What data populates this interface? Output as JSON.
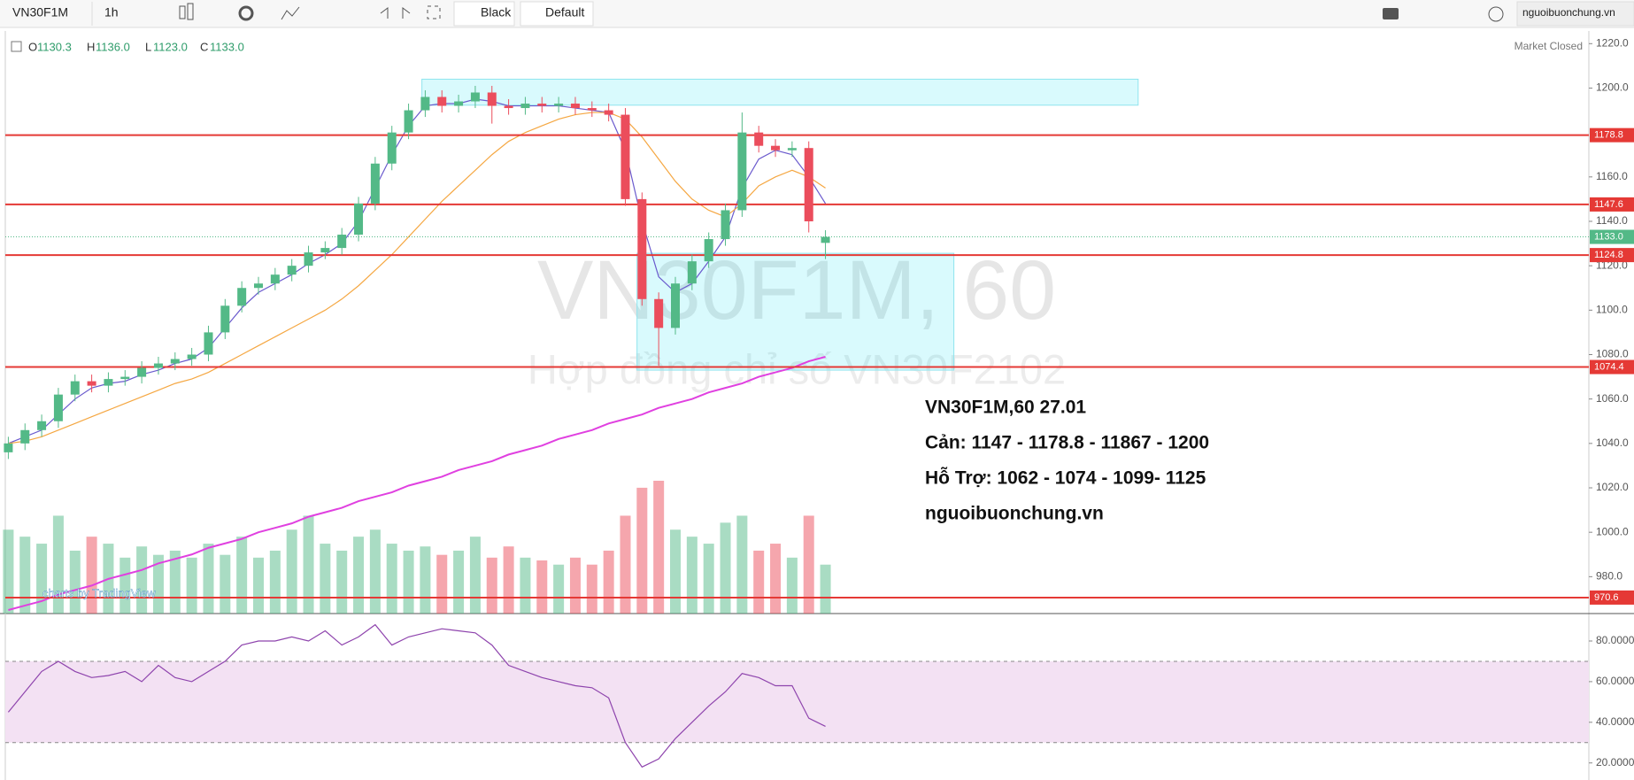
{
  "toolbar": {
    "symbol": "VN30F1M",
    "interval": "1h",
    "theme": "Black",
    "layout": "Default",
    "site": "nguoibuonchung.vn"
  },
  "legend": {
    "o_label": "O",
    "o": "1130.3",
    "h_label": "H",
    "h": "1136.0",
    "l_label": "L",
    "l": "1123.0",
    "c_label": "C",
    "c": "1133.0"
  },
  "status": "Market Closed",
  "watermark": {
    "title": "VN30F1M, 60",
    "subtitle": "Hợp đồng chỉ số VN30F2102"
  },
  "credit": "charts by TradingView",
  "annotation": [
    "VN30F1M,60  27.01",
    "Cản: 1147 - 1178.8 - 11867 - 1200",
    "Hỗ Trợ: 1062 - 1074 - 1099- 1125",
    "nguoibuonchung.vn"
  ],
  "chart_data": {
    "type": "candlestick",
    "ylim": [
      963.4,
      1225.7
    ],
    "yticks": [
      {
        "value": 1220,
        "label": "1220.0"
      },
      {
        "value": 1200,
        "label": "1200.0"
      },
      {
        "value": 1160,
        "label": "1160.0"
      },
      {
        "value": 1140,
        "label": "1140.0"
      },
      {
        "value": 1120,
        "label": "1120.0"
      },
      {
        "value": 1100,
        "label": "1100.0"
      },
      {
        "value": 1080,
        "label": "1080.0"
      },
      {
        "value": 1060,
        "label": "1060.0"
      },
      {
        "value": 1040,
        "label": "1040.0"
      },
      {
        "value": 1020,
        "label": "1020.0"
      },
      {
        "value": 1000,
        "label": "1000.0"
      },
      {
        "value": 980,
        "label": "980.0"
      }
    ],
    "up_color": "#53b987",
    "down_color": "#eb4d5c",
    "candles": [
      [
        1036,
        1043,
        1033,
        1040
      ],
      [
        1040,
        1049,
        1037,
        1046
      ],
      [
        1046,
        1053,
        1043,
        1050
      ],
      [
        1050,
        1065,
        1047,
        1062
      ],
      [
        1062,
        1071,
        1059,
        1068
      ],
      [
        1068,
        1071,
        1063,
        1066
      ],
      [
        1066,
        1072,
        1063,
        1069
      ],
      [
        1069,
        1073,
        1066,
        1070
      ],
      [
        1070,
        1077,
        1067,
        1074
      ],
      [
        1074,
        1079,
        1071,
        1076
      ],
      [
        1076,
        1081,
        1073,
        1078
      ],
      [
        1078,
        1083,
        1075,
        1080
      ],
      [
        1080,
        1093,
        1077,
        1090
      ],
      [
        1090,
        1105,
        1087,
        1102
      ],
      [
        1102,
        1113,
        1099,
        1110
      ],
      [
        1110,
        1115,
        1107,
        1112
      ],
      [
        1112,
        1119,
        1109,
        1116
      ],
      [
        1116,
        1123,
        1113,
        1120
      ],
      [
        1120,
        1129,
        1117,
        1126
      ],
      [
        1126,
        1131,
        1123,
        1128
      ],
      [
        1128,
        1137,
        1125,
        1134
      ],
      [
        1134,
        1151,
        1131,
        1148
      ],
      [
        1148,
        1169,
        1145,
        1166
      ],
      [
        1166,
        1183,
        1163,
        1180
      ],
      [
        1180,
        1193,
        1177,
        1190
      ],
      [
        1190,
        1199,
        1187,
        1196
      ],
      [
        1196,
        1199,
        1189,
        1192
      ],
      [
        1192,
        1197,
        1189,
        1194
      ],
      [
        1194,
        1201,
        1191,
        1198
      ],
      [
        1198,
        1201,
        1184,
        1192
      ],
      [
        1192,
        1195,
        1188,
        1191
      ],
      [
        1191,
        1196,
        1188,
        1193
      ],
      [
        1193,
        1196,
        1189,
        1192
      ],
      [
        1192,
        1196,
        1189,
        1193
      ],
      [
        1193,
        1196,
        1188,
        1191
      ],
      [
        1191,
        1194,
        1187,
        1190
      ],
      [
        1190,
        1193,
        1185,
        1188
      ],
      [
        1188,
        1191,
        1147,
        1150
      ],
      [
        1150,
        1153,
        1102,
        1105
      ],
      [
        1105,
        1108,
        1075,
        1092
      ],
      [
        1092,
        1115,
        1089,
        1112
      ],
      [
        1112,
        1125,
        1109,
        1122
      ],
      [
        1122,
        1135,
        1119,
        1132
      ],
      [
        1132,
        1148,
        1129,
        1145
      ],
      [
        1145,
        1189,
        1142,
        1180
      ],
      [
        1180,
        1183,
        1171,
        1174
      ],
      [
        1174,
        1177,
        1169,
        1172
      ],
      [
        1172,
        1176,
        1169,
        1173
      ],
      [
        1173,
        1176,
        1135,
        1140
      ],
      [
        1130.3,
        1136,
        1123,
        1133
      ]
    ],
    "volume": [
      60,
      55,
      50,
      70,
      45,
      55,
      50,
      40,
      48,
      42,
      45,
      40,
      50,
      42,
      55,
      40,
      45,
      60,
      70,
      50,
      45,
      55,
      60,
      50,
      45,
      48,
      42,
      45,
      55,
      40,
      48,
      40,
      38,
      35,
      40,
      35,
      45,
      70,
      90,
      95,
      60,
      55,
      50,
      65,
      70,
      45,
      50,
      40,
      70,
      35
    ],
    "lines": [
      {
        "color": "#6a5acd",
        "values": [
          1040,
          1043,
          1046,
          1053,
          1060,
          1065,
          1067,
          1068,
          1071,
          1073,
          1076,
          1078,
          1083,
          1092,
          1101,
          1108,
          1112,
          1116,
          1121,
          1125,
          1130,
          1140,
          1155,
          1170,
          1183,
          1192,
          1193,
          1193,
          1195,
          1194,
          1192,
          1192,
          1192,
          1192,
          1191,
          1190,
          1189,
          1172,
          1140,
          1115,
          1108,
          1112,
          1122,
          1133,
          1155,
          1168,
          1172,
          1170,
          1160,
          1148
        ]
      },
      {
        "color": "#f5a742",
        "values": [
          1040,
          1041,
          1043,
          1046,
          1049,
          1052,
          1055,
          1058,
          1061,
          1064,
          1067,
          1069,
          1072,
          1076,
          1080,
          1084,
          1088,
          1092,
          1096,
          1100,
          1105,
          1111,
          1118,
          1125,
          1133,
          1141,
          1149,
          1156,
          1163,
          1170,
          1176,
          1180,
          1183,
          1186,
          1188,
          1189,
          1189,
          1186,
          1178,
          1168,
          1158,
          1150,
          1145,
          1142,
          1148,
          1156,
          1160,
          1163,
          1160,
          1155
        ]
      },
      {
        "color": "#e040e0",
        "values": [
          965,
          967,
          969,
          972,
          974,
          976,
          979,
          981,
          983,
          986,
          988,
          990,
          993,
          995,
          997,
          1000,
          1002,
          1004,
          1007,
          1009,
          1011,
          1014,
          1016,
          1018,
          1021,
          1023,
          1025,
          1028,
          1030,
          1032,
          1035,
          1037,
          1039,
          1042,
          1044,
          1046,
          1049,
          1051,
          1053,
          1056,
          1058,
          1060,
          1063,
          1065,
          1067,
          1070,
          1072,
          1074,
          1077,
          1079
        ]
      }
    ],
    "levels": [
      {
        "value": 1178.8,
        "color": "#e53935"
      },
      {
        "value": 1147.6,
        "color": "#e53935"
      },
      {
        "value": 1124.8,
        "color": "#e53935"
      },
      {
        "value": 1074.4,
        "color": "#e53935"
      },
      {
        "value": 970.6,
        "color": "#e53935"
      }
    ],
    "last": {
      "value": 1133,
      "label": "1133.0",
      "color": "#53b987"
    },
    "zones": [
      {
        "from": 24.8,
        "to": 67.75,
        "top": 1204,
        "bottom": 1192.3
      },
      {
        "from": 37.7,
        "to": 56.7,
        "top": 1125.6,
        "bottom": 1073
      }
    ],
    "rsi": {
      "values": [
        45,
        55,
        65,
        70,
        65,
        62,
        63,
        65,
        60,
        68,
        62,
        60,
        65,
        70,
        78,
        80,
        80,
        82,
        80,
        85,
        78,
        82,
        88,
        78,
        82,
        84,
        86,
        85,
        84,
        78,
        68,
        65,
        62,
        60,
        58,
        57,
        52,
        30,
        18,
        22,
        32,
        40,
        48,
        55,
        64,
        62,
        58,
        58,
        42,
        38
      ],
      "color": "#8e44ad",
      "ylim": [
        11.6,
        93.5
      ],
      "band": [
        30,
        70
      ],
      "yticks": [
        {
          "value": 80,
          "label": "80.0000"
        },
        {
          "value": 60,
          "label": "60.0000"
        },
        {
          "value": 40,
          "label": "40.0000"
        },
        {
          "value": 20,
          "label": "20.0000"
        }
      ]
    }
  }
}
